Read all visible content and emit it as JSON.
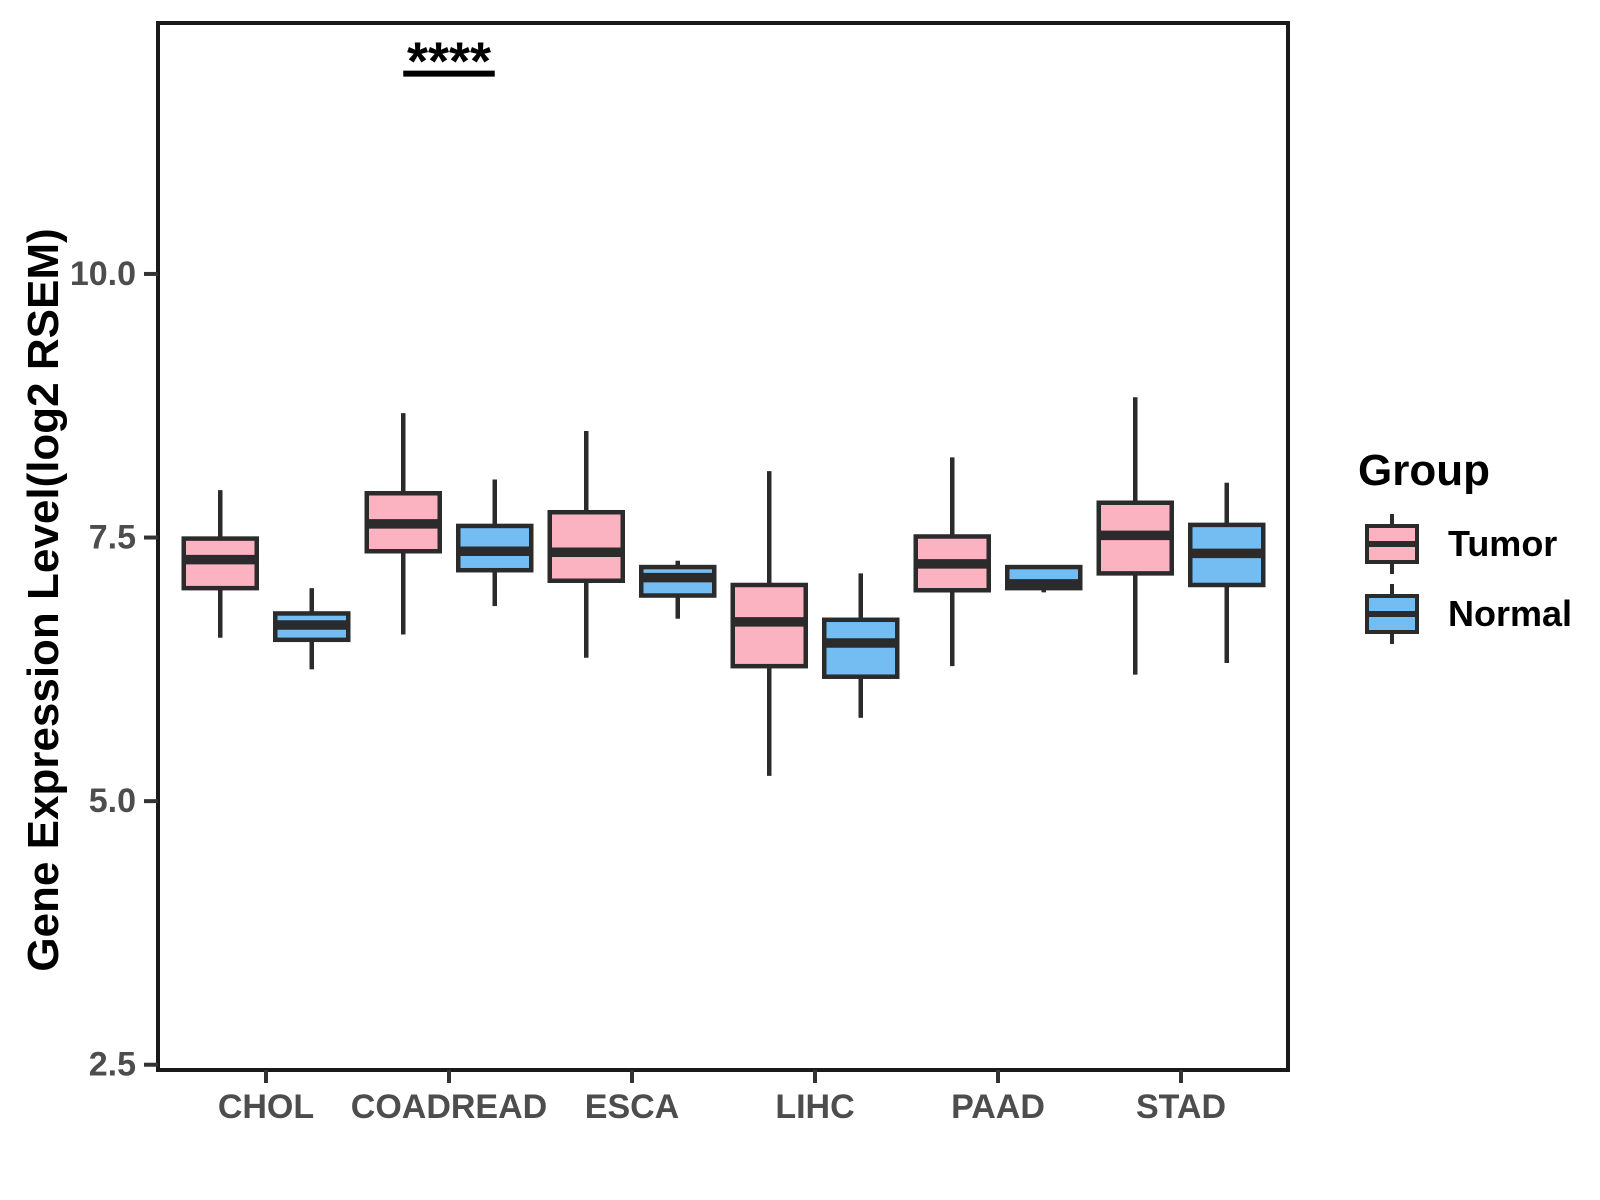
{
  "chart_data": {
    "type": "boxplot",
    "title": "",
    "xlabel": "",
    "ylabel": "Gene Expression Level(log2 RSEM)",
    "ylim": [
      2.45,
      12.38
    ],
    "yticks": [
      2.5,
      5.0,
      7.5,
      10.0
    ],
    "ytick_labels": [
      "2.5",
      "5.0",
      "7.5",
      "10.0"
    ],
    "categories": [
      "CHOL",
      "COADREAD",
      "ESCA",
      "LIHC",
      "PAAD",
      "STAD"
    ],
    "grid": "off",
    "panel_border": "on",
    "legend": {
      "title": "Group",
      "position": "right",
      "entries": [
        {
          "label": "Tumor",
          "color": "#FBB2C1"
        },
        {
          "label": "Normal",
          "color": "#73BDF2"
        }
      ]
    },
    "colors": {
      "tumor_fill": "#FBB2C1",
      "normal_fill": "#73BDF2",
      "box_stroke": "#2B2B2B",
      "panel_border": "#1A1A1A",
      "tick_label": "#4D4D4D",
      "axis_tick": "#333333",
      "annotation": "#000000"
    },
    "series": [
      {
        "name": "Tumor",
        "color": "#FBB2C1",
        "boxes": [
          {
            "category": "CHOL",
            "whisker_low": 6.55,
            "q1": 7.02,
            "median": 7.29,
            "q3": 7.49,
            "whisker_high": 7.95
          },
          {
            "category": "COADREAD",
            "whisker_low": 6.58,
            "q1": 7.37,
            "median": 7.63,
            "q3": 7.92,
            "whisker_high": 8.68
          },
          {
            "category": "ESCA",
            "whisker_low": 6.36,
            "q1": 7.09,
            "median": 7.36,
            "q3": 7.74,
            "whisker_high": 8.51
          },
          {
            "category": "LIHC",
            "whisker_low": 5.24,
            "q1": 6.28,
            "median": 6.7,
            "q3": 7.05,
            "whisker_high": 8.13
          },
          {
            "category": "PAAD",
            "whisker_low": 6.28,
            "q1": 7.0,
            "median": 7.25,
            "q3": 7.51,
            "whisker_high": 8.26
          },
          {
            "category": "STAD",
            "whisker_low": 6.2,
            "q1": 7.16,
            "median": 7.52,
            "q3": 7.83,
            "whisker_high": 8.83
          }
        ]
      },
      {
        "name": "Normal",
        "color": "#73BDF2",
        "boxes": [
          {
            "category": "CHOL",
            "whisker_low": 6.25,
            "q1": 6.53,
            "median": 6.67,
            "q3": 6.78,
            "whisker_high": 7.02
          },
          {
            "category": "COADREAD",
            "whisker_low": 6.85,
            "q1": 7.19,
            "median": 7.37,
            "q3": 7.61,
            "whisker_high": 8.05
          },
          {
            "category": "ESCA",
            "whisker_low": 6.73,
            "q1": 6.95,
            "median": 7.12,
            "q3": 7.22,
            "whisker_high": 7.28
          },
          {
            "category": "LIHC",
            "whisker_low": 5.79,
            "q1": 6.18,
            "median": 6.5,
            "q3": 6.72,
            "whisker_high": 7.16
          },
          {
            "category": "PAAD",
            "whisker_low": 6.98,
            "q1": 7.02,
            "median": 7.06,
            "q3": 7.22,
            "whisker_high": 7.23
          },
          {
            "category": "STAD",
            "whisker_low": 6.31,
            "q1": 7.05,
            "median": 7.35,
            "q3": 7.62,
            "whisker_high": 8.02
          }
        ]
      }
    ],
    "annotations": [
      {
        "type": "significance",
        "label": "****",
        "category": "COADREAD",
        "y_value": 11.9
      }
    ]
  }
}
